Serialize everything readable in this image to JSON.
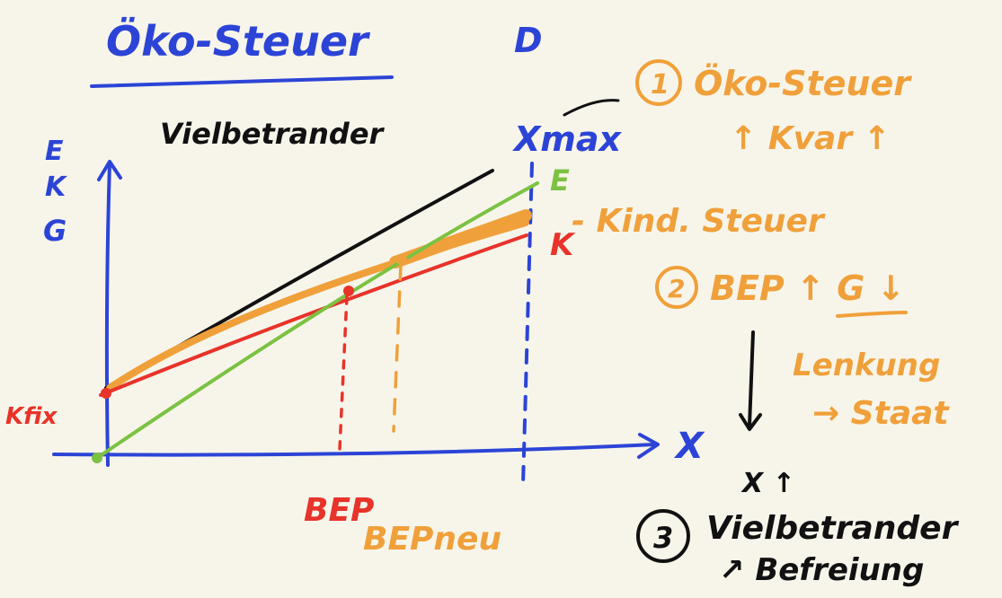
{
  "title": "Öko-Steuer",
  "top_mark": "D",
  "chart": {
    "y_axis_labels": [
      "E",
      "K",
      "G"
    ],
    "x_axis_label": "X",
    "group_label": "Vielbetrander",
    "x_max_label": "Xmax",
    "curve_e_label": "E",
    "curve_k_label": "K",
    "k_fix_label": "Kfix",
    "bep_label": "BEP",
    "bep_new_label": "BEPneu"
  },
  "notes": {
    "n1_number": "1",
    "n1_text": "Öko-Steuer",
    "n1_sub": "↑ Kvar ↑",
    "kind_tax": "- Kind. Steuer",
    "n2_number": "2",
    "n2_text": "BEP ↑  G ↓",
    "lenkung": "Lenkung",
    "staat": "→ Staat",
    "x_up": "X ↑",
    "n3_number": "3",
    "n3_text": "Vielbetrander",
    "n3_sub": "↗ Befreiung"
  },
  "colors": {
    "background": "#f7f5ea",
    "blue": "#2c44d6",
    "black": "#111111",
    "orange": "#f0a03a",
    "red": "#e8332a",
    "green": "#7cc242"
  }
}
